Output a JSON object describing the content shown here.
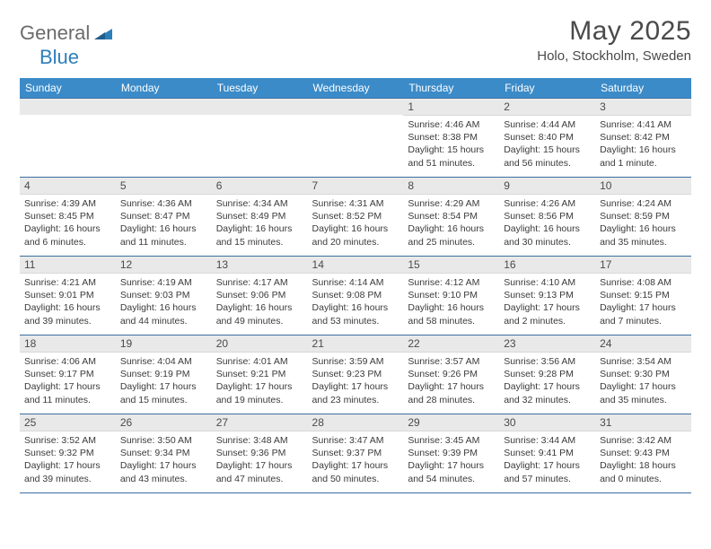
{
  "logo": {
    "text1": "General",
    "text2": "Blue",
    "shape_color": "#2d7fba"
  },
  "title": "May 2025",
  "location": "Holo, Stockholm, Sweden",
  "colors": {
    "header_bg": "#3b8bc8",
    "header_text": "#ffffff",
    "daynum_bg": "#e9e9e9",
    "body_text": "#3a3a3a",
    "rule": "#3b6fa0"
  },
  "weekdays": [
    "Sunday",
    "Monday",
    "Tuesday",
    "Wednesday",
    "Thursday",
    "Friday",
    "Saturday"
  ],
  "weeks": [
    [
      null,
      null,
      null,
      null,
      {
        "n": "1",
        "sr": "Sunrise: 4:46 AM",
        "ss": "Sunset: 8:38 PM",
        "dl": "Daylight: 15 hours and 51 minutes."
      },
      {
        "n": "2",
        "sr": "Sunrise: 4:44 AM",
        "ss": "Sunset: 8:40 PM",
        "dl": "Daylight: 15 hours and 56 minutes."
      },
      {
        "n": "3",
        "sr": "Sunrise: 4:41 AM",
        "ss": "Sunset: 8:42 PM",
        "dl": "Daylight: 16 hours and 1 minute."
      }
    ],
    [
      {
        "n": "4",
        "sr": "Sunrise: 4:39 AM",
        "ss": "Sunset: 8:45 PM",
        "dl": "Daylight: 16 hours and 6 minutes."
      },
      {
        "n": "5",
        "sr": "Sunrise: 4:36 AM",
        "ss": "Sunset: 8:47 PM",
        "dl": "Daylight: 16 hours and 11 minutes."
      },
      {
        "n": "6",
        "sr": "Sunrise: 4:34 AM",
        "ss": "Sunset: 8:49 PM",
        "dl": "Daylight: 16 hours and 15 minutes."
      },
      {
        "n": "7",
        "sr": "Sunrise: 4:31 AM",
        "ss": "Sunset: 8:52 PM",
        "dl": "Daylight: 16 hours and 20 minutes."
      },
      {
        "n": "8",
        "sr": "Sunrise: 4:29 AM",
        "ss": "Sunset: 8:54 PM",
        "dl": "Daylight: 16 hours and 25 minutes."
      },
      {
        "n": "9",
        "sr": "Sunrise: 4:26 AM",
        "ss": "Sunset: 8:56 PM",
        "dl": "Daylight: 16 hours and 30 minutes."
      },
      {
        "n": "10",
        "sr": "Sunrise: 4:24 AM",
        "ss": "Sunset: 8:59 PM",
        "dl": "Daylight: 16 hours and 35 minutes."
      }
    ],
    [
      {
        "n": "11",
        "sr": "Sunrise: 4:21 AM",
        "ss": "Sunset: 9:01 PM",
        "dl": "Daylight: 16 hours and 39 minutes."
      },
      {
        "n": "12",
        "sr": "Sunrise: 4:19 AM",
        "ss": "Sunset: 9:03 PM",
        "dl": "Daylight: 16 hours and 44 minutes."
      },
      {
        "n": "13",
        "sr": "Sunrise: 4:17 AM",
        "ss": "Sunset: 9:06 PM",
        "dl": "Daylight: 16 hours and 49 minutes."
      },
      {
        "n": "14",
        "sr": "Sunrise: 4:14 AM",
        "ss": "Sunset: 9:08 PM",
        "dl": "Daylight: 16 hours and 53 minutes."
      },
      {
        "n": "15",
        "sr": "Sunrise: 4:12 AM",
        "ss": "Sunset: 9:10 PM",
        "dl": "Daylight: 16 hours and 58 minutes."
      },
      {
        "n": "16",
        "sr": "Sunrise: 4:10 AM",
        "ss": "Sunset: 9:13 PM",
        "dl": "Daylight: 17 hours and 2 minutes."
      },
      {
        "n": "17",
        "sr": "Sunrise: 4:08 AM",
        "ss": "Sunset: 9:15 PM",
        "dl": "Daylight: 17 hours and 7 minutes."
      }
    ],
    [
      {
        "n": "18",
        "sr": "Sunrise: 4:06 AM",
        "ss": "Sunset: 9:17 PM",
        "dl": "Daylight: 17 hours and 11 minutes."
      },
      {
        "n": "19",
        "sr": "Sunrise: 4:04 AM",
        "ss": "Sunset: 9:19 PM",
        "dl": "Daylight: 17 hours and 15 minutes."
      },
      {
        "n": "20",
        "sr": "Sunrise: 4:01 AM",
        "ss": "Sunset: 9:21 PM",
        "dl": "Daylight: 17 hours and 19 minutes."
      },
      {
        "n": "21",
        "sr": "Sunrise: 3:59 AM",
        "ss": "Sunset: 9:23 PM",
        "dl": "Daylight: 17 hours and 23 minutes."
      },
      {
        "n": "22",
        "sr": "Sunrise: 3:57 AM",
        "ss": "Sunset: 9:26 PM",
        "dl": "Daylight: 17 hours and 28 minutes."
      },
      {
        "n": "23",
        "sr": "Sunrise: 3:56 AM",
        "ss": "Sunset: 9:28 PM",
        "dl": "Daylight: 17 hours and 32 minutes."
      },
      {
        "n": "24",
        "sr": "Sunrise: 3:54 AM",
        "ss": "Sunset: 9:30 PM",
        "dl": "Daylight: 17 hours and 35 minutes."
      }
    ],
    [
      {
        "n": "25",
        "sr": "Sunrise: 3:52 AM",
        "ss": "Sunset: 9:32 PM",
        "dl": "Daylight: 17 hours and 39 minutes."
      },
      {
        "n": "26",
        "sr": "Sunrise: 3:50 AM",
        "ss": "Sunset: 9:34 PM",
        "dl": "Daylight: 17 hours and 43 minutes."
      },
      {
        "n": "27",
        "sr": "Sunrise: 3:48 AM",
        "ss": "Sunset: 9:36 PM",
        "dl": "Daylight: 17 hours and 47 minutes."
      },
      {
        "n": "28",
        "sr": "Sunrise: 3:47 AM",
        "ss": "Sunset: 9:37 PM",
        "dl": "Daylight: 17 hours and 50 minutes."
      },
      {
        "n": "29",
        "sr": "Sunrise: 3:45 AM",
        "ss": "Sunset: 9:39 PM",
        "dl": "Daylight: 17 hours and 54 minutes."
      },
      {
        "n": "30",
        "sr": "Sunrise: 3:44 AM",
        "ss": "Sunset: 9:41 PM",
        "dl": "Daylight: 17 hours and 57 minutes."
      },
      {
        "n": "31",
        "sr": "Sunrise: 3:42 AM",
        "ss": "Sunset: 9:43 PM",
        "dl": "Daylight: 18 hours and 0 minutes."
      }
    ]
  ]
}
